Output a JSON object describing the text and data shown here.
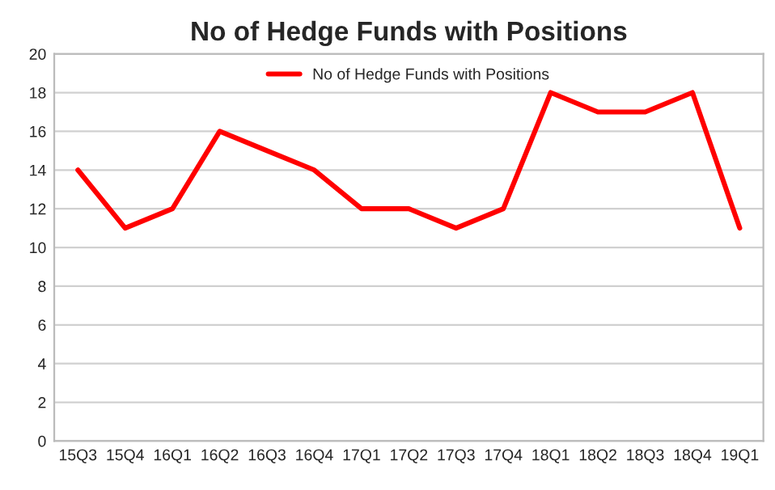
{
  "chart_data": {
    "type": "line",
    "title": "No of Hedge Funds with Positions",
    "categories": [
      "15Q3",
      "15Q4",
      "16Q1",
      "16Q2",
      "16Q3",
      "16Q4",
      "17Q1",
      "17Q2",
      "17Q3",
      "17Q4",
      "18Q1",
      "18Q2",
      "18Q3",
      "18Q4",
      "19Q1"
    ],
    "series": [
      {
        "name": "No of Hedge Funds with Positions",
        "color": "#ff0000",
        "values": [
          14,
          11,
          12,
          16,
          15,
          14,
          12,
          12,
          11,
          12,
          18,
          17,
          17,
          18,
          11
        ]
      }
    ],
    "ylim": [
      0,
      20
    ],
    "yticks": [
      0,
      2,
      4,
      6,
      8,
      10,
      12,
      14,
      16,
      18,
      20
    ],
    "grid": "y",
    "legend": "top",
    "marker": "none",
    "line_style": "solid"
  }
}
